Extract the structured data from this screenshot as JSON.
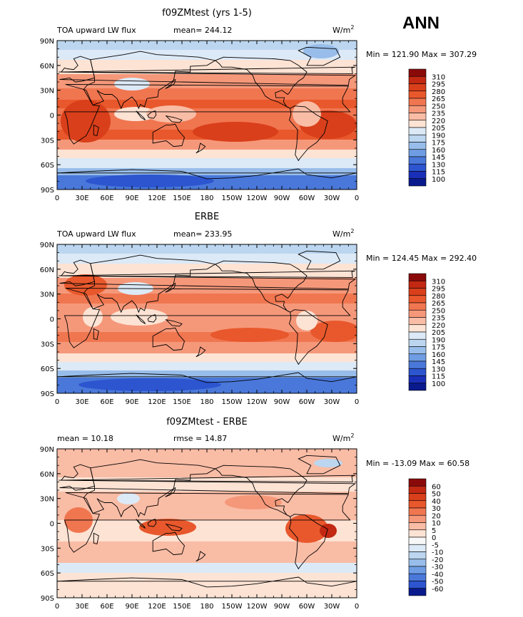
{
  "season": "ANN",
  "panels": [
    {
      "title": "f09ZMtest (yrs 1-5)",
      "left_label": "TOA upward LW flux",
      "center_label": "mean= 244.12",
      "units": "W/m",
      "units_exp": "2",
      "minmax": "Min = 121.90 Max = 307.29",
      "colorbar": {
        "labels": [
          "310",
          "295",
          "280",
          "265",
          "250",
          "235",
          "220",
          "205",
          "190",
          "175",
          "160",
          "145",
          "130",
          "115",
          "100"
        ]
      }
    },
    {
      "title": "ERBE",
      "left_label": "TOA upward LW flux",
      "center_label": "mean= 233.95",
      "units": "W/m",
      "units_exp": "2",
      "minmax": "Min = 124.45 Max = 292.40",
      "colorbar": {
        "labels": [
          "310",
          "295",
          "280",
          "265",
          "250",
          "235",
          "220",
          "205",
          "190",
          "175",
          "160",
          "145",
          "130",
          "115",
          "100"
        ]
      }
    },
    {
      "title": "f09ZMtest - ERBE",
      "left_label": "mean =   10.18",
      "center_label": "rmse =   14.87",
      "units": "W/m",
      "units_exp": "2",
      "minmax": "Min = -13.09 Max =   60.58",
      "colorbar": {
        "labels": [
          "60",
          "50",
          "40",
          "30",
          "20",
          "10",
          "5",
          "0",
          "-5",
          "-10",
          "-20",
          "-30",
          "-40",
          "-50",
          "-60"
        ]
      }
    }
  ],
  "lat_labels": [
    "90N",
    "60N",
    "30N",
    "0",
    "30S",
    "60S",
    "90S"
  ],
  "lon_labels": [
    "0",
    "30E",
    "60E",
    "90E",
    "120E",
    "150E",
    "180",
    "150W",
    "120W",
    "90W",
    "60W",
    "30W",
    "0"
  ],
  "colors": {
    "abs": [
      "#8a0a0a",
      "#c22812",
      "#d93f1a",
      "#e8582c",
      "#f07650",
      "#f5987a",
      "#f9bca5",
      "#fde3d4",
      "#dce9f6",
      "#bcd6f0",
      "#98bdea",
      "#6f9de4",
      "#4a78da",
      "#2c55cf",
      "#1a2fb8",
      "#081a8c"
    ],
    "diff": [
      "#8a0a0a",
      "#c22812",
      "#d93f1a",
      "#e8582c",
      "#f07650",
      "#f5987a",
      "#f9bca5",
      "#fde3d4",
      "#f7f7f7",
      "#dce9f6",
      "#bcd6f0",
      "#98bdea",
      "#6f9de4",
      "#4a78da",
      "#2c55cf",
      "#081a8c"
    ]
  }
}
